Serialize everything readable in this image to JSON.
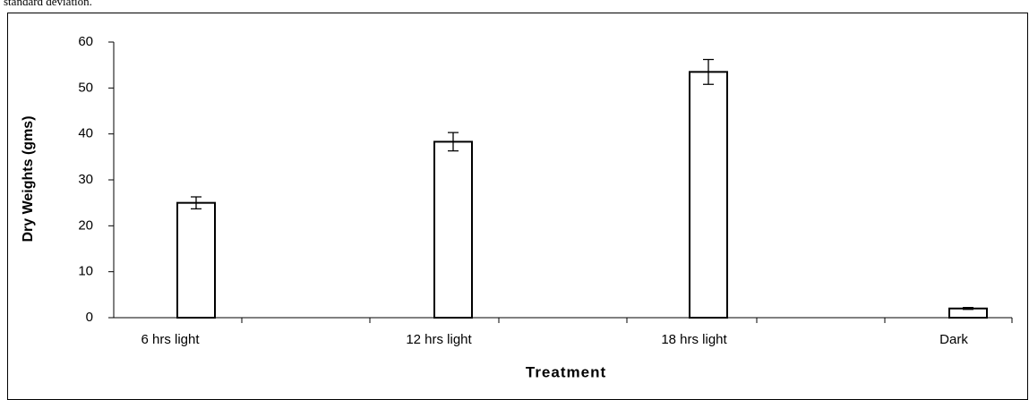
{
  "caption": "standard deviation.",
  "chart_data": {
    "type": "bar",
    "categories": [
      "6 hrs light",
      "12 hrs light",
      "18 hrs light",
      "Dark"
    ],
    "values": [
      25,
      38.3,
      53.5,
      2
    ],
    "errors": [
      1.3,
      2,
      2.7,
      0.2
    ],
    "color": "#ffffff",
    "ylim": [
      0,
      60
    ],
    "yticks": [
      0,
      10,
      20,
      30,
      40,
      50,
      60
    ],
    "ylabel": "Dry Weights (gms)",
    "xlabel": "Treatment"
  }
}
